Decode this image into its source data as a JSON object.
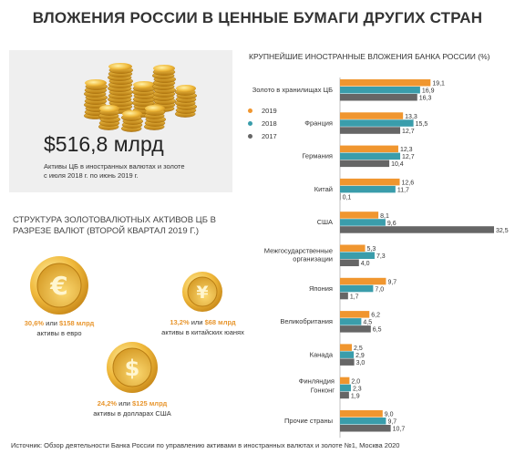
{
  "title": "ВЛОЖЕНИЯ РОССИИ В ЦЕННЫЕ БУМАГИ ДРУГИХ СТРАН",
  "summary": {
    "amount": "$516,8 млрд",
    "caption_line1": "Активы ЦБ в иностранных валютах и золоте",
    "caption_line2": "с июля 2018 г. по июнь 2019 г."
  },
  "structure_title": "СТРУКТУРА ЗОЛОТОВАЛЮТНЫХ АКТИВОВ ЦБ В РАЗРЕЗЕ ВАЛЮТ (ВТОРОЙ КВАРТАЛ 2019 Г.)",
  "currencies": [
    {
      "icon": "euro-coin-icon",
      "symbol": "€",
      "pct": "30,6%",
      "mid": " или ",
      "amount": "$158 млрд",
      "desc": "активы в евро"
    },
    {
      "icon": "yuan-coin-icon",
      "symbol": "¥",
      "pct": "13,2%",
      "mid": " или ",
      "amount": "$68 млрд",
      "desc": "активы в китайских юанях"
    },
    {
      "icon": "dollar-coin-icon",
      "symbol": "$",
      "pct": "24,2%",
      "mid": " или ",
      "amount": "$125 млрд",
      "desc": "активы в долларах США"
    }
  ],
  "chart_data": {
    "type": "bar",
    "orientation": "horizontal",
    "title": "КРУПНЕЙШИЕ ИНОСТРАННЫЕ ВЛОЖЕНИЯ БАНКА РОССИИ (%)",
    "legend_position": "left",
    "categories": [
      [
        "Золото в хранилищах ЦБ"
      ],
      [
        "Франция"
      ],
      [
        "Германия"
      ],
      [
        "Китай"
      ],
      [
        "США"
      ],
      [
        "Межгосударственные",
        "организации"
      ],
      [
        "Япония"
      ],
      [
        "Великобритания"
      ],
      [
        "Канада"
      ],
      [
        "Финляндия",
        "Гонконг"
      ],
      [
        "Прочие страны"
      ]
    ],
    "series": [
      {
        "name": "2019",
        "color": "#f0962f",
        "values": [
          19.1,
          13.3,
          12.3,
          12.6,
          8.1,
          5.3,
          9.7,
          6.2,
          2.5,
          2.0,
          9.0
        ]
      },
      {
        "name": "2018",
        "color": "#3a9dab",
        "values": [
          16.9,
          15.5,
          12.7,
          11.7,
          9.6,
          7.3,
          7.0,
          4.5,
          2.9,
          2.3,
          9.7
        ]
      },
      {
        "name": "2017",
        "color": "#666666",
        "values": [
          16.3,
          12.7,
          10.4,
          0.1,
          32.5,
          4.0,
          1.7,
          6.5,
          3.0,
          1.9,
          10.7
        ]
      }
    ],
    "labels": [
      [
        "19,1",
        "16,9",
        "16,3"
      ],
      [
        "13,3",
        "15,5",
        "12,7"
      ],
      [
        "12,3",
        "12,7",
        "10,4"
      ],
      [
        "12,6",
        "11,7",
        "0,1"
      ],
      [
        "8,1",
        "9,6",
        "32,5"
      ],
      [
        "5,3",
        "7,3",
        "4,0"
      ],
      [
        "9,7",
        "7,0",
        "1,7"
      ],
      [
        "6,2",
        "4,5",
        "6,5"
      ],
      [
        "2,5",
        "2,9",
        "3,0"
      ],
      [
        "2,0",
        "2,3",
        "1,9"
      ],
      [
        "9,0",
        "9,7",
        "10,7"
      ]
    ]
  },
  "source": "Источник: Обзор деятельности Банка России по управлению активами в иностранных валютах и золоте №1, Москва 2020"
}
